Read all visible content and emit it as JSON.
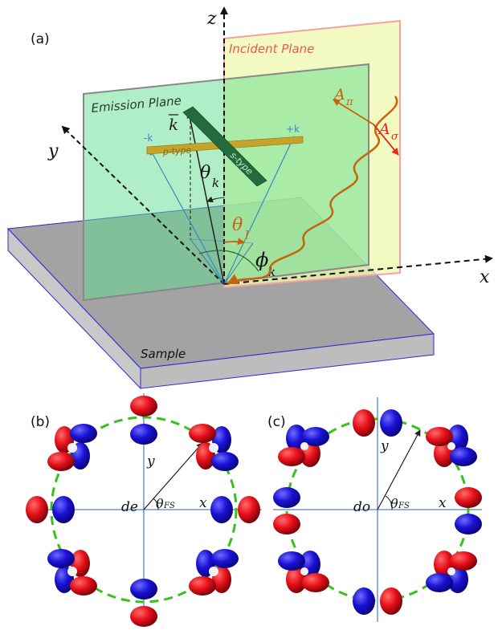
{
  "panel_a": {
    "label": "(a)",
    "axes": {
      "x": "x",
      "y": "y",
      "z": "z"
    },
    "incident_plane": "Incident Plane",
    "emission_plane": "Emission Plane",
    "sample": "Sample",
    "k_vector": "k",
    "plus_k": "+k",
    "minus_k": "-k",
    "p_type": "p-type",
    "s_type": "s-type",
    "theta_k": {
      "symbol": "θ",
      "sub": "k"
    },
    "theta_l": {
      "symbol": "θ",
      "sub": "l"
    },
    "phi_k": {
      "symbol": "ϕ",
      "sub": "k"
    },
    "A_pi": {
      "symbol": "A",
      "sub": "π"
    },
    "A_sigma": {
      "symbol": "A",
      "sub": "σ"
    }
  },
  "panel_b": {
    "label": "(b)",
    "center": "de",
    "x": "x",
    "y": "y",
    "theta_fs": {
      "symbol": "θ",
      "sub": "FS"
    }
  },
  "panel_c": {
    "label": "(c)",
    "center": "do",
    "x": "x",
    "y": "y",
    "theta_fs": {
      "symbol": "θ",
      "sub": "FS"
    }
  },
  "colors": {
    "lobe_red": "#e8101a",
    "lobe_blue": "#1a12d6",
    "circle_green": "#36c21a",
    "axis_blue": "#5a7fcf",
    "incident_plane": "#eef7b0",
    "incident_border": "#f2a2a2",
    "emission_plane": "#7de6a5",
    "sample_top": "#9b9b9b",
    "orange": "#c9620f"
  }
}
